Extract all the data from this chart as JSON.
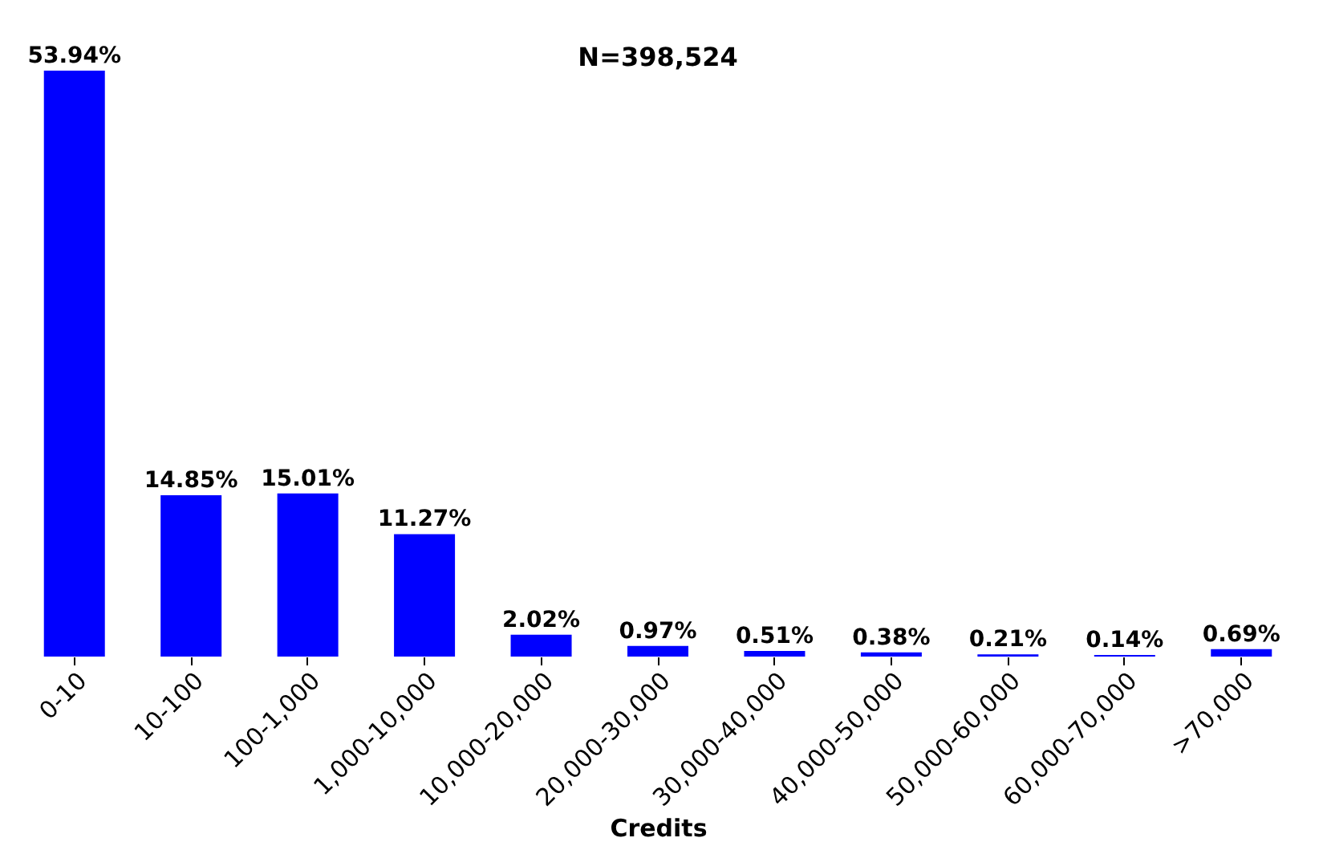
{
  "chart_data": {
    "type": "bar",
    "xlabel": "Credits",
    "annotations": [
      "N=398,524"
    ],
    "categories": [
      "0-10",
      "10-100",
      "100-1,000",
      "1,000-10,000",
      "10,000-20,000",
      "20,000-30,000",
      "30,000-40,000",
      "40,000-50,000",
      "50,000-60,000",
      "60,000-70,000",
      ">70,000"
    ],
    "values": [
      53.94,
      14.85,
      15.01,
      11.27,
      2.02,
      0.97,
      0.51,
      0.38,
      0.21,
      0.14,
      0.69
    ],
    "value_labels": [
      "53.94%",
      "14.85%",
      "15.01%",
      "11.27%",
      "2.02%",
      "0.97%",
      "0.51%",
      "0.38%",
      "0.21%",
      "0.14%",
      "0.69%"
    ],
    "color": "#0000ff"
  }
}
